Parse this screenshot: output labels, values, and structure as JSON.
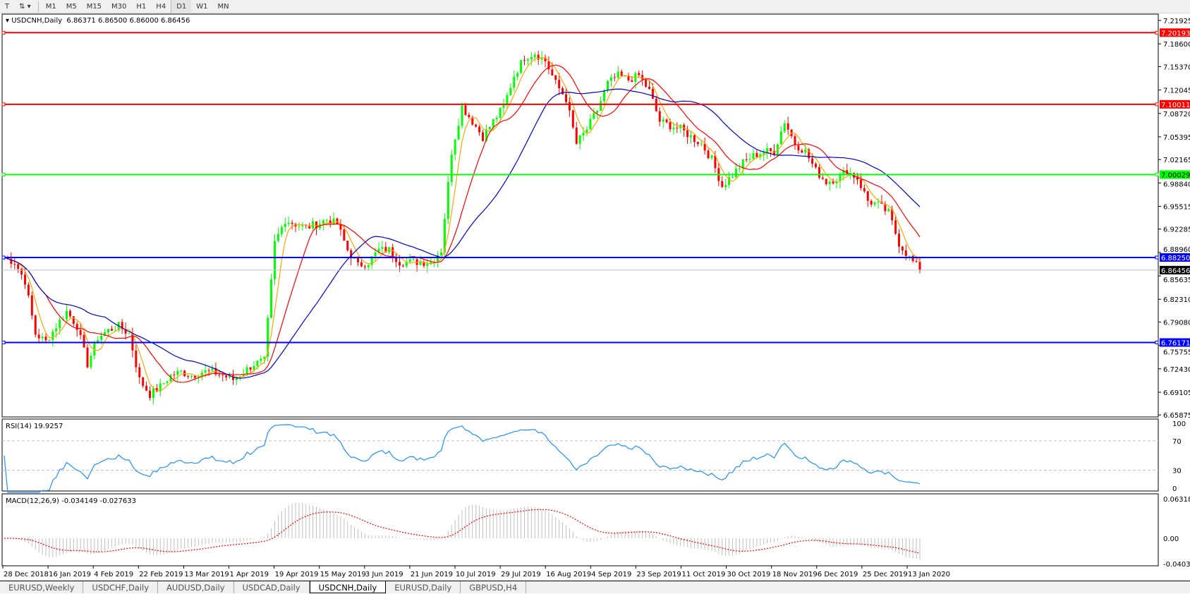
{
  "toolbar": {
    "icons": [
      "text-tool-icon",
      "shapes-dropdown-icon"
    ],
    "timeframes": [
      "M1",
      "M5",
      "M15",
      "M30",
      "H1",
      "H4",
      "D1",
      "W1",
      "MN"
    ],
    "active": "D1"
  },
  "header": {
    "symbol": "USDCNH,Daily",
    "ohlc": "6.86371 6.86500 6.86000 6.86456"
  },
  "price_axis": [
    "7.21925",
    "7.18600",
    "7.15370",
    "7.12045",
    "7.08720",
    "7.05395",
    "7.02165",
    "6.98840",
    "6.95515",
    "6.92285",
    "6.88960",
    "6.85635",
    "6.82310",
    "6.79080",
    "6.75755",
    "6.72430",
    "6.69105",
    "6.65875"
  ],
  "levels": [
    {
      "price": "7.20193",
      "color": "#ff0000"
    },
    {
      "price": "7.10011",
      "color": "#ff0000"
    },
    {
      "price": "7.00029",
      "color": "#00ff00"
    },
    {
      "price": "6.88250",
      "color": "#0000ff"
    },
    {
      "price": "6.76171",
      "color": "#0000ff"
    }
  ],
  "current_price": "6.86456",
  "rsi": {
    "label": "RSI(14) 19.9257",
    "levels": [
      "100",
      "70",
      "30",
      "0"
    ]
  },
  "macd": {
    "label": "MACD(12,26,9) -0.034149 -0.027633",
    "levels": [
      "0.063184",
      "0.00",
      "-0.040355"
    ]
  },
  "dates": [
    "28 Dec 2018",
    "16 Jan 2019",
    "4 Feb 2019",
    "22 Feb 2019",
    "13 Mar 2019",
    "1 Apr 2019",
    "19 Apr 2019",
    "15 May 2019",
    "3 Jun 2019",
    "21 Jun 2019",
    "10 Jul 2019",
    "29 Jul 2019",
    "16 Aug 2019",
    "4 Sep 2019",
    "23 Sep 2019",
    "11 Oct 2019",
    "30 Oct 2019",
    "18 Nov 2019",
    "6 Dec 2019",
    "25 Dec 2019",
    "13 Jan 2020"
  ],
  "tabs": [
    "EURUSD,Weekly",
    "USDCHF,Daily",
    "AUDUSD,Daily",
    "USDCAD,Daily",
    "USDCNH,Daily",
    "EURUSD,Daily",
    "GBPUSD,H4"
  ],
  "active_tab": "USDCNH,Daily",
  "colors": {
    "up": "#00ff00",
    "down": "#ff0000",
    "ma_fast": "#ffa500",
    "ma_mid": "#ff0000",
    "ma_slow": "#0000cd",
    "rsi": "#1e90ff",
    "macd_hist": "#c0c0c0",
    "macd_signal": "#ff0000"
  },
  "chart_data": {
    "type": "candlestick",
    "symbol": "USDCNH",
    "timeframe": "Daily",
    "ylim": [
      6.65875,
      7.21925
    ],
    "closes": [
      6.882,
      6.876,
      6.849,
      6.774,
      6.763,
      6.785,
      6.806,
      6.785,
      6.731,
      6.769,
      6.779,
      6.785,
      6.774,
      6.709,
      6.688,
      6.699,
      6.715,
      6.72,
      6.715,
      6.72,
      6.72,
      6.715,
      6.709,
      6.72,
      6.731,
      6.736,
      6.903,
      6.936,
      6.93,
      6.925,
      6.93,
      6.936,
      6.93,
      6.893,
      6.871,
      6.876,
      6.893,
      6.893,
      6.876,
      6.876,
      6.876,
      6.876,
      6.893,
      7.033,
      7.097,
      7.076,
      7.054,
      7.076,
      7.097,
      7.141,
      7.167,
      7.173,
      7.162,
      7.13,
      7.108,
      7.044,
      7.065,
      7.092,
      7.13,
      7.141,
      7.135,
      7.141,
      7.119,
      7.076,
      7.07,
      7.065,
      7.054,
      7.044,
      7.022,
      6.984,
      7.0,
      7.017,
      7.027,
      7.033,
      7.033,
      7.076,
      7.044,
      7.033,
      7.006,
      6.99,
      6.995,
      7.006,
      6.995,
      6.963,
      6.957,
      6.946,
      6.903,
      6.882,
      6.865
    ]
  }
}
